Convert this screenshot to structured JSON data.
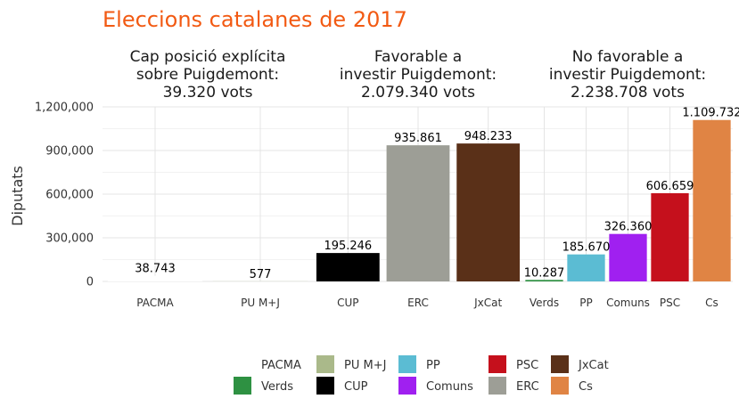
{
  "chart_data": {
    "type": "bar",
    "title": "Eleccions catalanes de 2017",
    "ylabel": "Diputats",
    "xlabel": "",
    "ylim": [
      0,
      1200000
    ],
    "yticks": [
      0,
      300000,
      600000,
      900000,
      1200000
    ],
    "ytick_labels": [
      "0",
      "300,000",
      "600,000",
      "900,000",
      "1,200,000"
    ],
    "grid": true,
    "legend_position": "bottom",
    "panels": [
      {
        "title": [
          "Cap posició explícita",
          "sobre Puigdemont:",
          "39.320 vots"
        ],
        "categories": [
          "PACMA",
          "PU M+J"
        ],
        "values": [
          38743,
          577
        ],
        "labels": [
          "38.743",
          "577"
        ]
      },
      {
        "title": [
          "Favorable a",
          "investir Puigdemont:",
          "2.079.340 vots"
        ],
        "categories": [
          "CUP",
          "ERC",
          "JxCat"
        ],
        "values": [
          195246,
          935861,
          948233
        ],
        "labels": [
          "195.246",
          "935.861",
          "948.233"
        ]
      },
      {
        "title": [
          "No favorable a",
          "investir Puigdemont:",
          "2.238.708 vots"
        ],
        "categories": [
          "Verds",
          "PP",
          "Comuns",
          "PSC",
          "Cs"
        ],
        "values": [
          10287,
          185670,
          326360,
          606659,
          1109732
        ],
        "labels": [
          "10.287",
          "185.670",
          "326.360",
          "606.659",
          "1.109.732"
        ]
      }
    ],
    "colors": {
      "PACMA": "#ffffff",
      "PU M+J": "#aab98a",
      "CUP": "#000000",
      "ERC": "#9d9e96",
      "JxCat": "#5a3018",
      "Verds": "#2e9142",
      "PP": "#5bbcd3",
      "Comuns": "#a020f0",
      "PSC": "#c5101c",
      "Cs": "#e08444"
    },
    "legend": [
      [
        "PACMA",
        "Verds"
      ],
      [
        "PU M+J",
        "CUP"
      ],
      [
        "PP",
        "Comuns"
      ],
      [
        "PSC",
        "ERC"
      ],
      [
        "JxCat",
        "Cs"
      ]
    ]
  }
}
